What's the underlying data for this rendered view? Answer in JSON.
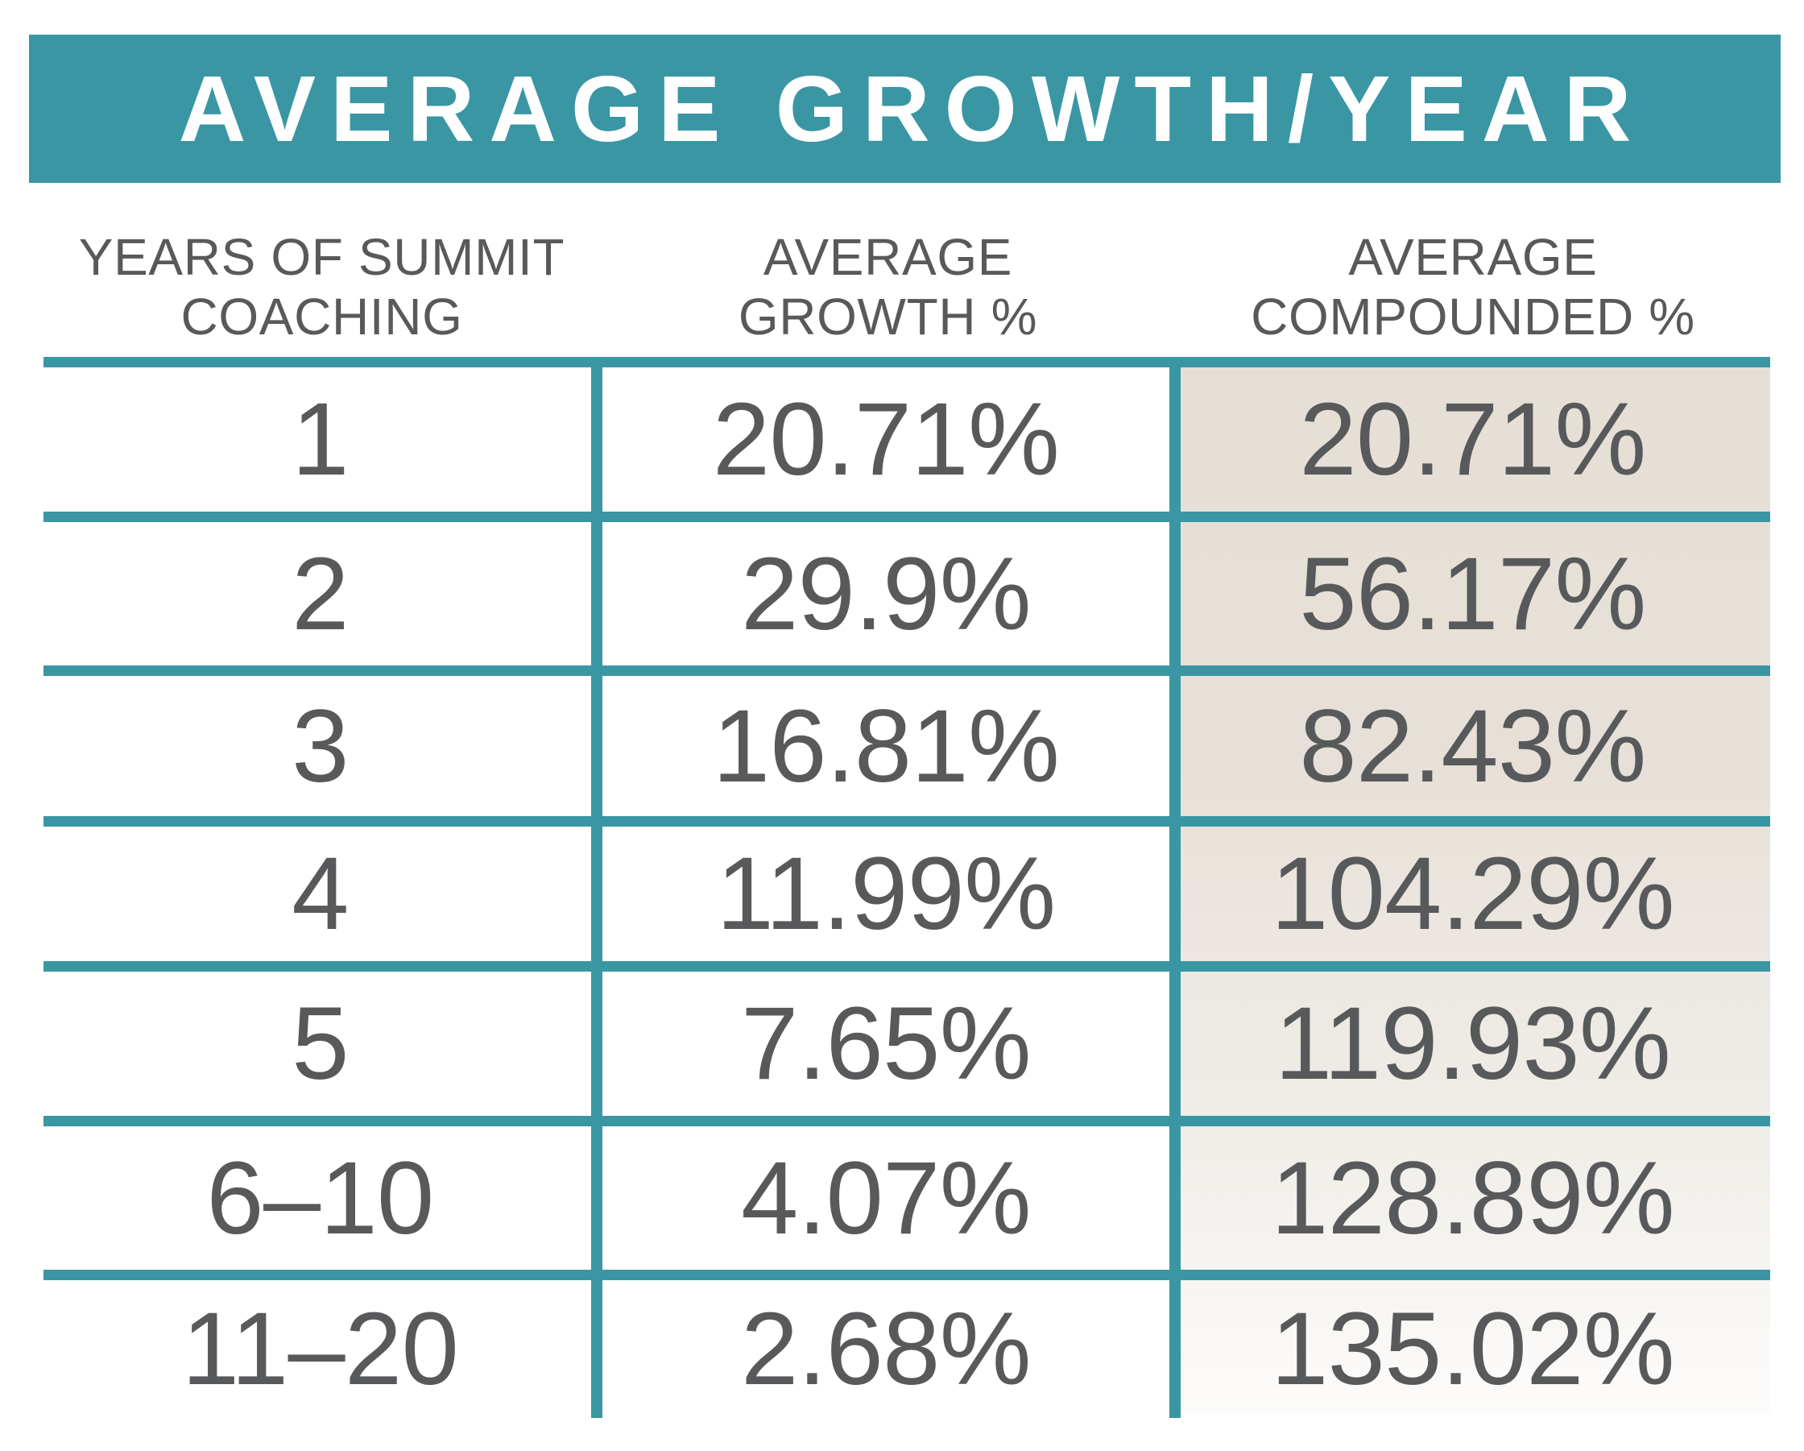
{
  "title": "AVERAGE GROWTH/YEAR",
  "columns": [
    {
      "line1": "YEARS OF SUMMIT",
      "line2": "COACHING"
    },
    {
      "line1": "AVERAGE",
      "line2": "GROWTH %"
    },
    {
      "line1": "AVERAGE",
      "line2": "COMPOUNDED %"
    }
  ],
  "rows": [
    {
      "years": "1",
      "growth": "20.71%",
      "compounded": "20.71%"
    },
    {
      "years": "2",
      "growth": "29.9%",
      "compounded": "56.17%"
    },
    {
      "years": "3",
      "growth": "16.81%",
      "compounded": "82.43%"
    },
    {
      "years": "4",
      "growth": "11.99%",
      "compounded": "104.29%"
    },
    {
      "years": "5",
      "growth": "7.65%",
      "compounded": "119.93%"
    },
    {
      "years": "6–10",
      "growth": "4.07%",
      "compounded": "128.89%"
    },
    {
      "years": "11–20",
      "growth": "2.68%",
      "compounded": "135.02%"
    }
  ],
  "colors": {
    "teal": "#3a96a3",
    "text_gray": "#58595b",
    "beige": "#e6dfd6"
  },
  "chart_data": {
    "type": "table",
    "title": "AVERAGE GROWTH/YEAR",
    "columns": [
      "YEARS OF SUMMIT COACHING",
      "AVERAGE GROWTH %",
      "AVERAGE COMPOUNDED %"
    ],
    "rows": [
      [
        "1",
        "20.71%",
        "20.71%"
      ],
      [
        "2",
        "29.9%",
        "56.17%"
      ],
      [
        "3",
        "16.81%",
        "82.43%"
      ],
      [
        "4",
        "11.99%",
        "104.29%"
      ],
      [
        "5",
        "7.65%",
        "119.93%"
      ],
      [
        "6–10",
        "4.07%",
        "128.89%"
      ],
      [
        "11–20",
        "2.68%",
        "135.02%"
      ]
    ],
    "growth_pct_values": [
      20.71,
      29.9,
      16.81,
      11.99,
      7.65,
      4.07,
      2.68
    ],
    "compounded_pct_values": [
      20.71,
      56.17,
      82.43,
      104.29,
      119.93,
      128.89,
      135.02
    ]
  }
}
